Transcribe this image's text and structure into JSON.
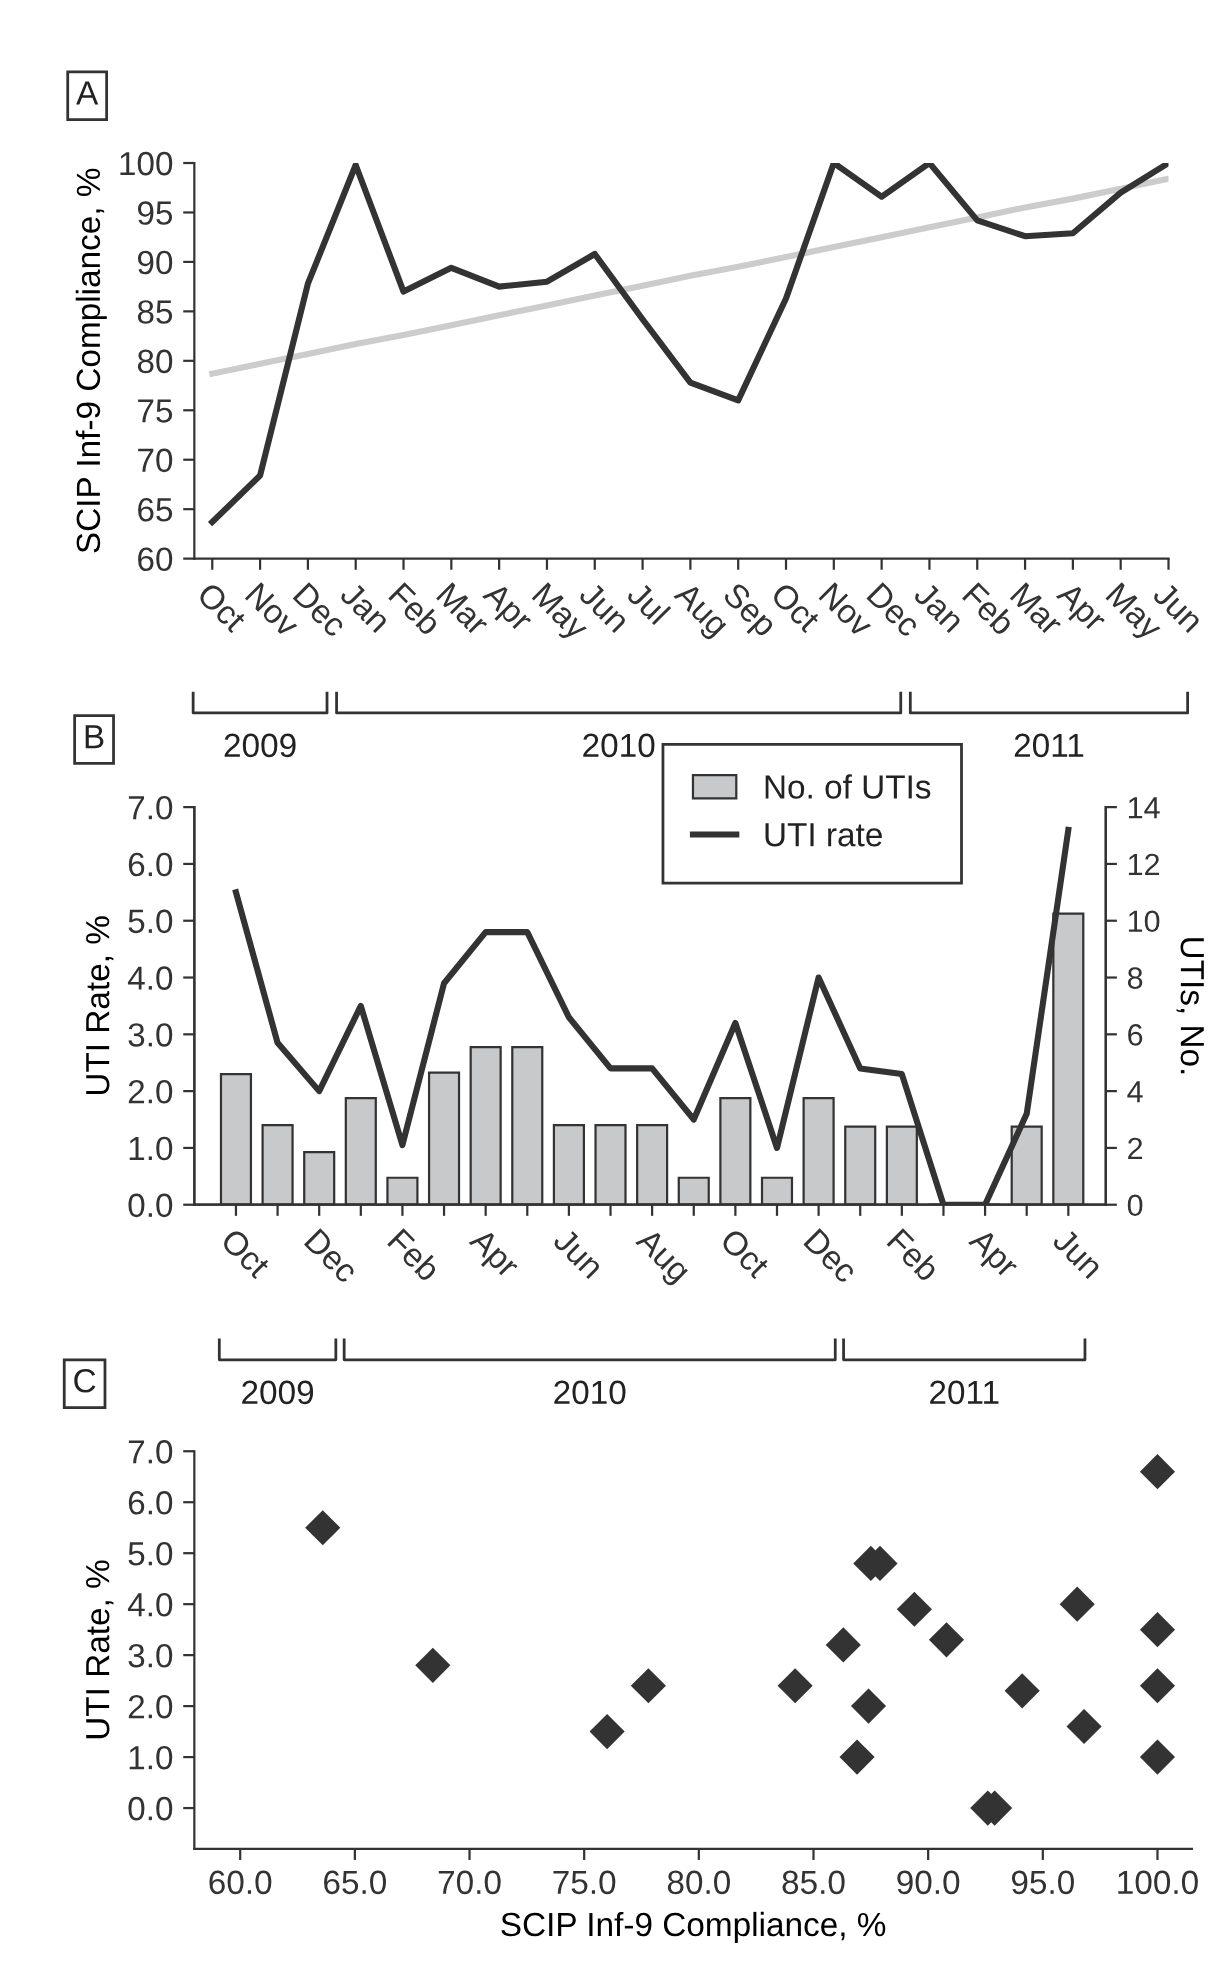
{
  "chart_data": [
    {
      "type": "line",
      "title": "A",
      "ylabel": "SCIP Inf-9 Compliance, %",
      "categories": [
        "Oct",
        "Nov",
        "Dec",
        "Jan",
        "Feb",
        "Mar",
        "Apr",
        "May",
        "Jun",
        "Jul",
        "Aug",
        "Sep",
        "Oct",
        "Nov",
        "Dec",
        "Jan",
        "Feb",
        "Mar",
        "Apr",
        "May",
        "Jun"
      ],
      "series": [
        {
          "color": "#cccccc",
          "values": [
            78.7,
            79.7,
            80.7,
            81.7,
            82.6,
            83.6,
            84.6,
            85.6,
            86.6,
            87.6,
            88.6,
            89.5,
            90.5,
            91.5,
            92.5,
            93.5,
            94.5,
            95.5,
            96.4,
            97.4,
            98.4
          ]
        },
        {
          "color": "#333333",
          "values": [
            63.7,
            68.4,
            87.8,
            99.8,
            87.0,
            89.4,
            87.5,
            88.0,
            90.8,
            84.2,
            77.8,
            76.0,
            86.3,
            100,
            96.6,
            100,
            94.2,
            92.6,
            92.9,
            97.0,
            100
          ]
        }
      ],
      "ylim": [
        60,
        100
      ],
      "yticks": [
        60,
        65,
        70,
        75,
        80,
        85,
        90,
        95,
        100
      ],
      "grid": false,
      "legend": false,
      "marker": "none",
      "line_style": "solid",
      "annotations": [
        "2009",
        "2010",
        "2011"
      ]
    },
    {
      "type": "bar",
      "title": "B",
      "ylabel": "UTI Rate, %",
      "y2label": "UTIs, No.",
      "categories": [
        "Oct",
        null,
        "Dec",
        null,
        "Feb",
        null,
        "Apr",
        null,
        "Jun",
        null,
        "Aug",
        null,
        "Oct",
        null,
        "Dec",
        null,
        "Feb",
        null,
        "Apr",
        null,
        "Jun"
      ],
      "series": [
        {
          "name": "No. of UTIs",
          "type": "bar",
          "axis": "y2",
          "color": "#c8c9cb",
          "values": [
            4.6,
            2.8,
            1.85,
            3.75,
            0.95,
            4.65,
            5.55,
            5.55,
            2.8,
            2.8,
            2.8,
            0.95,
            3.75,
            0.95,
            3.75,
            2.75,
            2.75,
            0,
            0,
            2.75,
            10.25
          ]
        },
        {
          "name": "UTI rate",
          "type": "line",
          "color": "#333333",
          "values": [
            5.5,
            2.85,
            2.0,
            3.5,
            1.05,
            3.9,
            4.8,
            4.8,
            3.3,
            2.4,
            2.4,
            1.5,
            3.2,
            1.0,
            4.0,
            2.4,
            2.3,
            0,
            0,
            1.6,
            6.6
          ]
        }
      ],
      "ylim": [
        0,
        7
      ],
      "yticks": [
        {
          "value": 0,
          "label": "0.0"
        },
        {
          "value": 1,
          "label": "1.0"
        },
        {
          "value": 2,
          "label": "2.0"
        },
        {
          "value": 3,
          "label": "3.0"
        },
        {
          "value": 4,
          "label": "4.0"
        },
        {
          "value": 5,
          "label": "5.0"
        },
        {
          "value": 6,
          "label": "6.0"
        },
        {
          "value": 7,
          "label": "7.0"
        }
      ],
      "y2lim": [
        0,
        14
      ],
      "y2ticks": [
        0,
        2,
        4,
        6,
        8,
        10,
        12,
        14
      ],
      "grid": false,
      "legend": "top right",
      "annotations": [
        "2009",
        "2010",
        "2011"
      ]
    },
    {
      "type": "scatter",
      "title": "C",
      "xlabel": "SCIP Inf-9 Compliance, %",
      "ylabel": "UTI Rate, %",
      "series": [
        {
          "color": "#333333",
          "x": [
            63.6,
            68.4,
            76.0,
            77.8,
            84.2,
            86.3,
            86.9,
            87.4,
            87.5,
            87.9,
            89.4,
            90.8,
            92.6,
            92.9,
            94.1,
            96.5,
            96.8,
            100,
            100,
            100,
            100
          ],
          "values": [
            5.5,
            2.8,
            1.5,
            2.4,
            2.4,
            3.2,
            1.0,
            2.0,
            4.8,
            4.8,
            3.9,
            3.3,
            0,
            0,
            2.3,
            4.0,
            1.6,
            6.6,
            3.5,
            2.4,
            1.0
          ]
        }
      ],
      "xlim": [
        58.0,
        101.5
      ],
      "xticks": [
        {
          "value": 60,
          "label": "60.0"
        },
        {
          "value": 65,
          "label": "65.0"
        },
        {
          "value": 70,
          "label": "70.0"
        },
        {
          "value": 75,
          "label": "75.0"
        },
        {
          "value": 80,
          "label": "80.0"
        },
        {
          "value": 85,
          "label": "85.0"
        },
        {
          "value": 90,
          "label": "90.0"
        },
        {
          "value": 95,
          "label": "95.0"
        },
        {
          "value": 100,
          "label": "100.0"
        }
      ],
      "ylim": [
        -0.8,
        7.0
      ],
      "yticks": [
        {
          "value": 0,
          "label": "0.0"
        },
        {
          "value": 1,
          "label": "1.0"
        },
        {
          "value": 2,
          "label": "2.0"
        },
        {
          "value": 3,
          "label": "3.0"
        },
        {
          "value": 4,
          "label": "4.0"
        },
        {
          "value": 5,
          "label": "5.0"
        },
        {
          "value": 6,
          "label": "6.0"
        },
        {
          "value": 7,
          "label": "7.0"
        }
      ],
      "grid": false,
      "legend": false,
      "marker": "diamond"
    }
  ]
}
